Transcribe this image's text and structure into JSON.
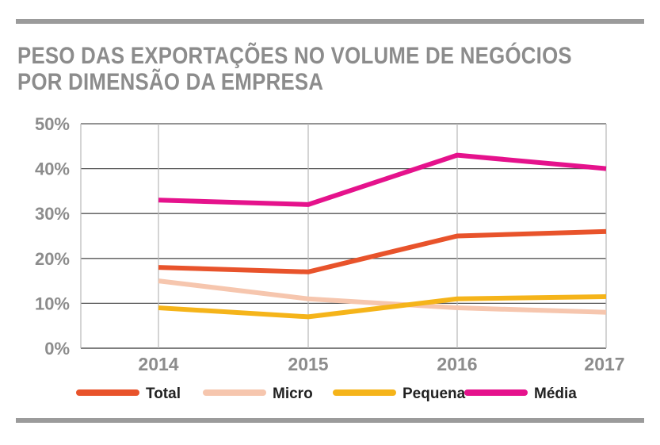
{
  "chart_data": {
    "type": "line",
    "title_lines": [
      "PESO DAS EXPORTAÇÕES NO VOLUME DE NEGÓCIOS",
      "POR DIMENSÃO DA EMPRESA"
    ],
    "xlabel": "",
    "ylabel": "",
    "x": [
      "2014",
      "2015",
      "2016",
      "2017"
    ],
    "ylim": [
      0,
      50
    ],
    "yticks": [
      0,
      10,
      20,
      30,
      40,
      50
    ],
    "ytick_labels": [
      "0%",
      "10%",
      "20%",
      "30%",
      "40%",
      "50%"
    ],
    "grid": "both",
    "legend_position": "bottom",
    "series": [
      {
        "name": "Total",
        "color": "#e8532b",
        "values": [
          18,
          17,
          25,
          26
        ]
      },
      {
        "name": "Micro",
        "color": "#f6c6ae",
        "values": [
          15,
          11,
          9,
          8
        ]
      },
      {
        "name": "Pequena",
        "color": "#f5b41a",
        "values": [
          9,
          7,
          11,
          11.5
        ]
      },
      {
        "name": "Média",
        "color": "#e5128c",
        "values": [
          33,
          32,
          43,
          40
        ]
      }
    ]
  }
}
